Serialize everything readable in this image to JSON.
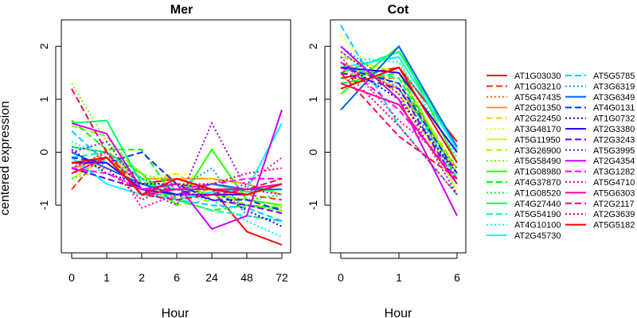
{
  "chart_data": [
    {
      "type": "line",
      "title": "Mer",
      "xlabel": "Hour",
      "ylabel": "centered expression",
      "x": [
        "0",
        "1",
        "2",
        "6",
        "24",
        "48",
        "72"
      ],
      "ylim": [
        -1.9,
        2.5
      ],
      "yticks": [
        -1,
        0,
        1,
        2
      ],
      "series": [
        {
          "name": "AT1G03030",
          "values": [
            -0.3,
            -0.1,
            -0.6,
            -0.5,
            -0.7,
            -1.5,
            -1.75
          ]
        },
        {
          "name": "AT1G03210",
          "values": [
            -0.7,
            0.05,
            -0.8,
            -0.8,
            -0.7,
            -0.8,
            -0.9
          ]
        },
        {
          "name": "AT5G47435",
          "values": [
            -0.4,
            -0.2,
            -0.7,
            -0.6,
            -0.8,
            -0.9,
            -1.0
          ]
        },
        {
          "name": "AT2G01350",
          "values": [
            -0.3,
            -0.1,
            -0.5,
            -0.5,
            -0.5,
            -0.6,
            -0.8
          ]
        },
        {
          "name": "AT2G22450",
          "values": [
            -0.4,
            0.05,
            -0.6,
            -0.4,
            -0.9,
            -1.0,
            -1.1
          ]
        },
        {
          "name": "AT3G48170",
          "values": [
            -0.2,
            -0.1,
            -0.5,
            -0.4,
            -0.5,
            -0.8,
            -1.05
          ]
        },
        {
          "name": "AT5G11950",
          "values": [
            -0.5,
            -0.1,
            -0.7,
            -0.9,
            -0.7,
            -1.0,
            -1.05
          ]
        },
        {
          "name": "AT3G26900",
          "values": [
            0.5,
            0.3,
            -0.5,
            -1.0,
            -0.9,
            -1.0,
            -1.1
          ]
        },
        {
          "name": "AT5G58490",
          "values": [
            1.3,
            0.2,
            -0.4,
            -0.6,
            -0.8,
            -1.0,
            -1.1
          ]
        },
        {
          "name": "AT1G08980",
          "values": [
            0.1,
            0.0,
            -0.4,
            -1.0,
            0.05,
            -0.9,
            -1.0
          ]
        },
        {
          "name": "AT4G37870",
          "values": [
            0.6,
            0.05,
            0.05,
            -0.9,
            -1.1,
            -1.0,
            -1.05
          ]
        },
        {
          "name": "AT1G08520",
          "values": [
            -0.5,
            -0.3,
            -0.6,
            -0.7,
            -0.8,
            -0.9,
            -0.8
          ]
        },
        {
          "name": "AT4G27440",
          "values": [
            0.55,
            0.6,
            -0.6,
            -0.7,
            -0.6,
            -0.75,
            -0.7
          ]
        },
        {
          "name": "AT5G54190",
          "values": [
            -0.1,
            0.0,
            -0.5,
            -0.9,
            -1.1,
            -1.2,
            -1.3
          ]
        },
        {
          "name": "AT4G10100",
          "values": [
            0.2,
            -0.1,
            -0.6,
            -0.8,
            -0.9,
            -1.3,
            -1.6
          ]
        },
        {
          "name": "AT2G45730",
          "values": [
            -0.1,
            -0.6,
            -0.8,
            -0.9,
            -0.75,
            -0.7,
            0.55
          ]
        },
        {
          "name": "AT5G5785",
          "values": [
            0.4,
            -0.2,
            -0.7,
            -0.9,
            -1.0,
            -1.05,
            -1.3
          ]
        },
        {
          "name": "AT3G6319",
          "values": [
            0.1,
            0.0,
            -0.5,
            -0.7,
            -0.3,
            -1.2,
            -1.3
          ]
        },
        {
          "name": "AT3G6349",
          "values": [
            0.0,
            -0.3,
            -0.6,
            -0.8,
            -0.6,
            -0.7,
            -0.7
          ]
        },
        {
          "name": "AT4G0131",
          "values": [
            -0.1,
            -0.2,
            0.0,
            -0.6,
            -0.9,
            -0.9,
            -1.1
          ]
        },
        {
          "name": "AT1G0732",
          "values": [
            0.05,
            -0.4,
            -0.6,
            -0.6,
            -0.7,
            -1.1,
            -1.4
          ]
        },
        {
          "name": "AT2G3380",
          "values": [
            -0.2,
            -0.2,
            -0.7,
            -0.8,
            -0.8,
            -0.8,
            -0.6
          ]
        },
        {
          "name": "AT2G3243",
          "values": [
            -0.3,
            -0.5,
            -0.7,
            -0.7,
            -0.9,
            -1.0,
            -1.15
          ]
        },
        {
          "name": "AT5G3995",
          "values": [
            0.0,
            0.2,
            -0.7,
            -1.0,
            0.55,
            -0.7,
            -0.8
          ]
        },
        {
          "name": "AT2G4354",
          "values": [
            0.55,
            0.35,
            -0.7,
            -0.6,
            -1.45,
            -1.2,
            0.8
          ]
        },
        {
          "name": "AT3G1282",
          "values": [
            -0.3,
            -0.4,
            -0.7,
            -0.7,
            -0.6,
            -0.5,
            -0.5
          ]
        },
        {
          "name": "AT5G4710",
          "values": [
            -0.3,
            0.0,
            -1.05,
            -0.8,
            -0.8,
            -0.6,
            -0.1
          ]
        },
        {
          "name": "AT5G6303",
          "values": [
            -0.4,
            -0.1,
            -0.8,
            -0.7,
            -0.7,
            -0.7,
            -0.6
          ]
        },
        {
          "name": "AT2G2117",
          "values": [
            1.2,
            0.0,
            -0.8,
            -0.9,
            -0.8,
            -0.7,
            -0.5
          ]
        },
        {
          "name": "AT2G3639",
          "values": [
            -0.2,
            -0.3,
            -0.9,
            -0.6,
            -0.6,
            -0.4,
            -0.3
          ]
        },
        {
          "name": "AT5G5182",
          "values": [
            -0.2,
            -0.1,
            -0.8,
            -0.5,
            -0.7,
            -0.8,
            -0.6
          ]
        }
      ]
    },
    {
      "type": "line",
      "title": "Cot",
      "xlabel": "Hour",
      "ylabel": "",
      "x": [
        "0",
        "1",
        "6"
      ],
      "ylim": [
        -1.9,
        2.5
      ],
      "yticks": [
        -1,
        0,
        1,
        2
      ],
      "series": [
        {
          "name": "AT1G03030",
          "values": [
            1.4,
            1.6,
            0.2
          ]
        },
        {
          "name": "AT1G03210",
          "values": [
            1.4,
            1.4,
            -0.4
          ]
        },
        {
          "name": "AT5G47435",
          "values": [
            1.6,
            1.3,
            -0.5
          ]
        },
        {
          "name": "AT2G01350",
          "values": [
            1.7,
            1.2,
            -0.3
          ]
        },
        {
          "name": "AT2G22450",
          "values": [
            1.9,
            1.1,
            -0.6
          ]
        },
        {
          "name": "AT3G48170",
          "values": [
            2.2,
            1.0,
            -0.7
          ]
        },
        {
          "name": "AT5G11950",
          "values": [
            1.8,
            1.5,
            -0.4
          ]
        },
        {
          "name": "AT3G26900",
          "values": [
            1.5,
            1.4,
            -0.3
          ]
        },
        {
          "name": "AT5G58490",
          "values": [
            1.6,
            1.8,
            -0.8
          ]
        },
        {
          "name": "AT1G08980",
          "values": [
            1.1,
            2.0,
            -0.2
          ]
        },
        {
          "name": "AT4G37870",
          "values": [
            1.3,
            1.5,
            -0.5
          ]
        },
        {
          "name": "AT1G08520",
          "values": [
            1.4,
            1.2,
            -0.3
          ]
        },
        {
          "name": "AT4G27440",
          "values": [
            1.5,
            1.9,
            0.1
          ]
        },
        {
          "name": "AT5G54190",
          "values": [
            1.6,
            1.4,
            -0.6
          ]
        },
        {
          "name": "AT4G10100",
          "values": [
            1.8,
            1.7,
            -0.1
          ]
        },
        {
          "name": "AT2G45730",
          "values": [
            1.6,
            1.8,
            0.05
          ]
        },
        {
          "name": "AT5G5785",
          "values": [
            2.4,
            0.5,
            -0.8
          ]
        },
        {
          "name": "AT3G6319",
          "values": [
            2.0,
            1.2,
            -0.5
          ]
        },
        {
          "name": "AT3G6349",
          "values": [
            0.8,
            2.0,
            0.1
          ]
        },
        {
          "name": "AT4G0131",
          "values": [
            1.6,
            1.3,
            -0.4
          ]
        },
        {
          "name": "AT1G0732",
          "values": [
            1.7,
            1.0,
            -0.4
          ]
        },
        {
          "name": "AT2G3380",
          "values": [
            1.6,
            1.5,
            0.0
          ]
        },
        {
          "name": "AT2G3243",
          "values": [
            1.5,
            1.2,
            -0.6
          ]
        },
        {
          "name": "AT5G3995",
          "values": [
            1.9,
            1.1,
            -0.8
          ]
        },
        {
          "name": "AT2G4354",
          "values": [
            2.0,
            1.0,
            -1.2
          ]
        },
        {
          "name": "AT3G1282",
          "values": [
            1.7,
            0.8,
            -0.5
          ]
        },
        {
          "name": "AT5G4710",
          "values": [
            1.8,
            0.6,
            -0.3
          ]
        },
        {
          "name": "AT5G6303",
          "values": [
            1.3,
            0.9,
            -0.6
          ]
        },
        {
          "name": "AT2G2117",
          "values": [
            1.5,
            0.3,
            -0.5
          ]
        },
        {
          "name": "AT2G3639",
          "values": [
            1.6,
            0.5,
            -0.8
          ]
        },
        {
          "name": "AT5G5182",
          "values": [
            1.2,
            1.6,
            -0.2
          ]
        }
      ]
    }
  ],
  "legend": {
    "placement": "right",
    "columns": [
      [
        {
          "name": "AT1G03030",
          "color": "#FF0000",
          "dash": "solid"
        },
        {
          "name": "AT1G03210",
          "color": "#FF3300",
          "dash": "dashed"
        },
        {
          "name": "AT5G47435",
          "color": "#FF6600",
          "dash": "dotted"
        },
        {
          "name": "AT2G01350",
          "color": "#FF9900",
          "dash": "solid"
        },
        {
          "name": "AT2G22450",
          "color": "#FFCC00",
          "dash": "dashed"
        },
        {
          "name": "AT3G48170",
          "color": "#FFFF00",
          "dash": "dotted"
        },
        {
          "name": "AT5G11950",
          "color": "#CCFF00",
          "dash": "solid"
        },
        {
          "name": "AT3G26900",
          "color": "#99FF00",
          "dash": "dashed"
        },
        {
          "name": "AT5G58490",
          "color": "#66FF00",
          "dash": "dotted"
        },
        {
          "name": "AT1G08980",
          "color": "#33FF00",
          "dash": "solid"
        },
        {
          "name": "AT4G37870",
          "color": "#00FF00",
          "dash": "dashed"
        },
        {
          "name": "AT1G08520",
          "color": "#00FF33",
          "dash": "dotted"
        },
        {
          "name": "AT4G27440",
          "color": "#00FF66",
          "dash": "solid"
        },
        {
          "name": "AT5G54190",
          "color": "#00FF99",
          "dash": "dashed"
        },
        {
          "name": "AT4G10100",
          "color": "#00FFCC",
          "dash": "dotted"
        },
        {
          "name": "AT2G45730",
          "color": "#00FFFF",
          "dash": "solid"
        }
      ],
      [
        {
          "name": "AT5G5785",
          "color": "#00CCFF",
          "dash": "dashed"
        },
        {
          "name": "AT3G6319",
          "color": "#0099FF",
          "dash": "dotted"
        },
        {
          "name": "AT3G6349",
          "color": "#0066FF",
          "dash": "solid"
        },
        {
          "name": "AT4G0131",
          "color": "#0033FF",
          "dash": "dashed"
        },
        {
          "name": "AT1G0732",
          "color": "#0000FF",
          "dash": "dotted"
        },
        {
          "name": "AT2G3380",
          "color": "#3300FF",
          "dash": "solid"
        },
        {
          "name": "AT2G3243",
          "color": "#6600FF",
          "dash": "dashed"
        },
        {
          "name": "AT5G3995",
          "color": "#9900FF",
          "dash": "dotted"
        },
        {
          "name": "AT2G4354",
          "color": "#CC00FF",
          "dash": "solid"
        },
        {
          "name": "AT3G1282",
          "color": "#FF00FF",
          "dash": "dashed"
        },
        {
          "name": "AT5G4710",
          "color": "#FF00CC",
          "dash": "dotted"
        },
        {
          "name": "AT5G6303",
          "color": "#FF0099",
          "dash": "solid"
        },
        {
          "name": "AT2G2117",
          "color": "#FF0066",
          "dash": "dashed"
        },
        {
          "name": "AT2G3639",
          "color": "#FF0033",
          "dash": "dotted"
        },
        {
          "name": "AT5G5182",
          "color": "#FF0000",
          "dash": "solid"
        }
      ]
    ]
  }
}
